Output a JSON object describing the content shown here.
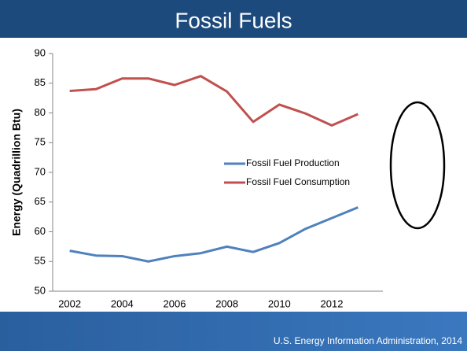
{
  "title": "Fossil Fuels",
  "source": "U.S. Energy Information Administration, 2014",
  "chart_data": {
    "type": "line",
    "ylabel": "Energy (Quadrillion Btu)",
    "categories": [
      "2002",
      null,
      "2004",
      null,
      "2006",
      null,
      "2008",
      null,
      "2010",
      null,
      "2012",
      null
    ],
    "series": [
      {
        "name": "Fossil Fuel Production",
        "color": "#4f81bd",
        "values": [
          56.8,
          56.0,
          55.9,
          55.0,
          55.9,
          56.4,
          57.5,
          56.6,
          58.1,
          60.5,
          62.3,
          64.1
        ]
      },
      {
        "name": "Fossil Fuel Consumption",
        "color": "#c0504d",
        "values": [
          83.7,
          84.0,
          85.8,
          85.8,
          84.7,
          86.2,
          83.6,
          78.5,
          81.4,
          79.9,
          77.9,
          79.8
        ]
      }
    ],
    "ylim": [
      50,
      90
    ],
    "yticks": [
      50,
      55,
      60,
      65,
      70,
      75,
      80,
      85,
      90
    ]
  }
}
